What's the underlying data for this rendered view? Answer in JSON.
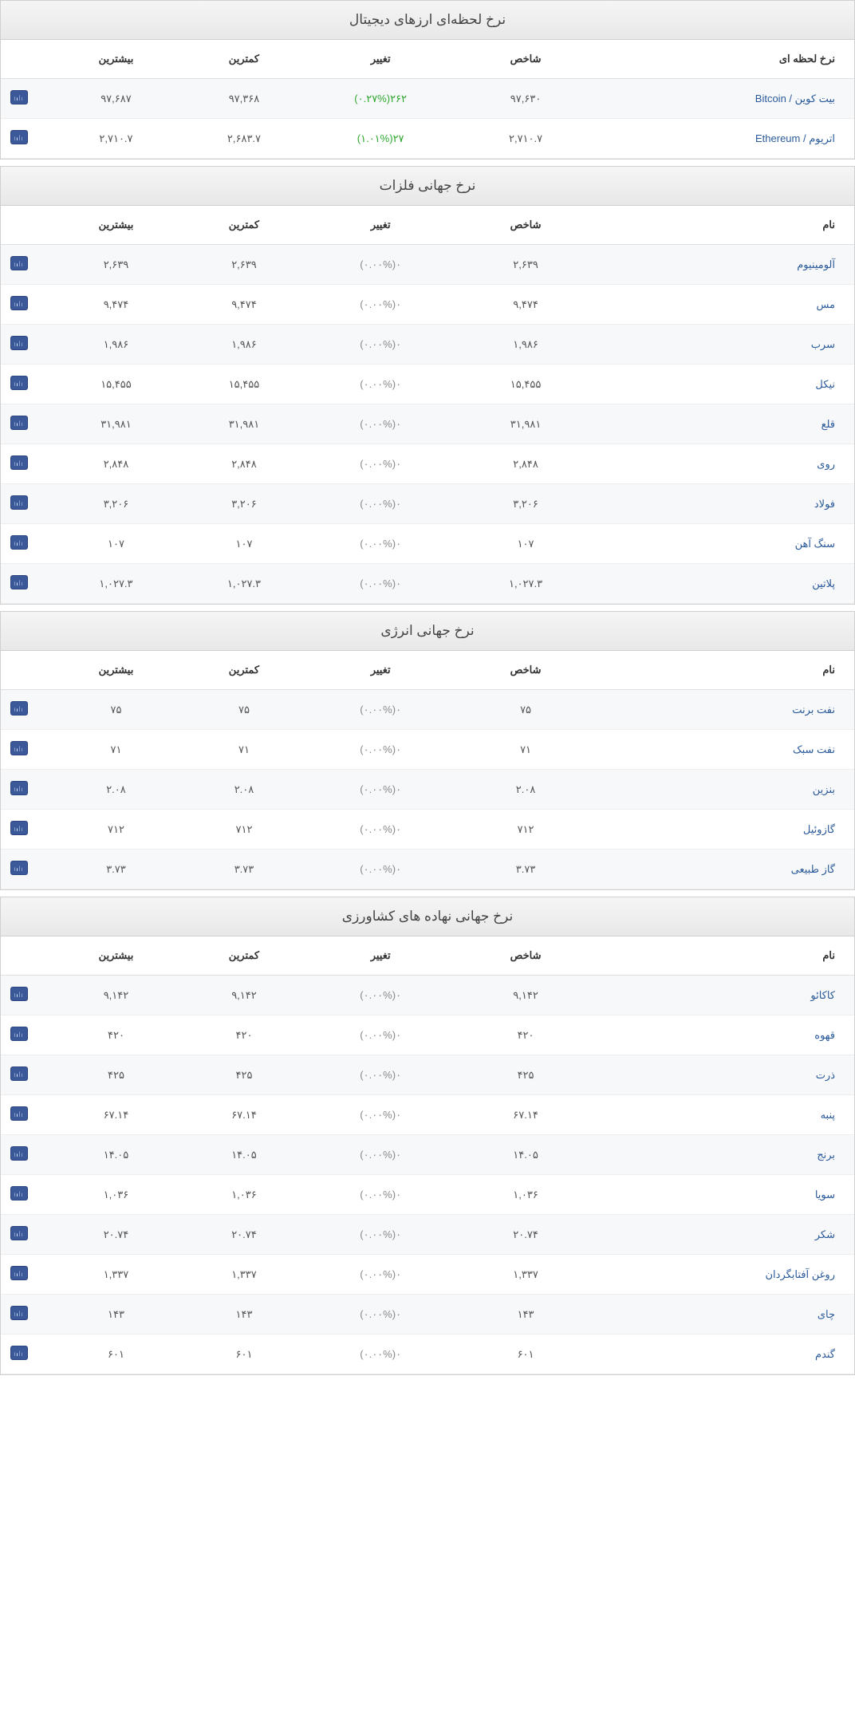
{
  "sections": [
    {
      "title": "نرخ لحظه‌ای ارزهای دیجیتال",
      "headers": {
        "name": "نرخ لحظه ای",
        "index": "شاخص",
        "change": "تغییر",
        "low": "کمترین",
        "high": "بیشترین"
      },
      "rows": [
        {
          "name": "بیت کوین / Bitcoin",
          "index": "۹۷,۶۳۰",
          "change_val": "۲۶۲",
          "change_pct": "(۰.۲۷%)",
          "positive": true,
          "low": "۹۷,۳۶۸",
          "high": "۹۷,۶۸۷"
        },
        {
          "name": "اتریوم / Ethereum",
          "index": "۲,۷۱۰.۷",
          "change_val": "۲۷",
          "change_pct": "(۱.۰۱%)",
          "positive": true,
          "low": "۲,۶۸۳.۷",
          "high": "۲,۷۱۰.۷"
        }
      ]
    },
    {
      "title": "نرخ جهانی فلزات",
      "headers": {
        "name": "نام",
        "index": "شاخص",
        "change": "تغییر",
        "low": "کمترین",
        "high": "بیشترین"
      },
      "rows": [
        {
          "name": "آلومینیوم",
          "index": "۲,۶۳۹",
          "change_val": "۰",
          "change_pct": "(۰.۰۰%)",
          "positive": false,
          "low": "۲,۶۳۹",
          "high": "۲,۶۳۹"
        },
        {
          "name": "مس",
          "index": "۹,۴۷۴",
          "change_val": "۰",
          "change_pct": "(۰.۰۰%)",
          "positive": false,
          "low": "۹,۴۷۴",
          "high": "۹,۴۷۴"
        },
        {
          "name": "سرب",
          "index": "۱,۹۸۶",
          "change_val": "۰",
          "change_pct": "(۰.۰۰%)",
          "positive": false,
          "low": "۱,۹۸۶",
          "high": "۱,۹۸۶"
        },
        {
          "name": "نیکل",
          "index": "۱۵,۴۵۵",
          "change_val": "۰",
          "change_pct": "(۰.۰۰%)",
          "positive": false,
          "low": "۱۵,۴۵۵",
          "high": "۱۵,۴۵۵"
        },
        {
          "name": "قلع",
          "index": "۳۱,۹۸۱",
          "change_val": "۰",
          "change_pct": "(۰.۰۰%)",
          "positive": false,
          "low": "۳۱,۹۸۱",
          "high": "۳۱,۹۸۱"
        },
        {
          "name": "روی",
          "index": "۲,۸۴۸",
          "change_val": "۰",
          "change_pct": "(۰.۰۰%)",
          "positive": false,
          "low": "۲,۸۴۸",
          "high": "۲,۸۴۸"
        },
        {
          "name": "فولاد",
          "index": "۳,۲۰۶",
          "change_val": "۰",
          "change_pct": "(۰.۰۰%)",
          "positive": false,
          "low": "۳,۲۰۶",
          "high": "۳,۲۰۶"
        },
        {
          "name": "سنگ آهن",
          "index": "۱۰۷",
          "change_val": "۰",
          "change_pct": "(۰.۰۰%)",
          "positive": false,
          "low": "۱۰۷",
          "high": "۱۰۷"
        },
        {
          "name": "پلاتین",
          "index": "۱,۰۲۷.۳",
          "change_val": "۰",
          "change_pct": "(۰.۰۰%)",
          "positive": false,
          "low": "۱,۰۲۷.۳",
          "high": "۱,۰۲۷.۳"
        }
      ]
    },
    {
      "title": "نرخ جهانی انرژی",
      "headers": {
        "name": "نام",
        "index": "شاخص",
        "change": "تغییر",
        "low": "کمترین",
        "high": "بیشترین"
      },
      "rows": [
        {
          "name": "نفت برنت",
          "index": "۷۵",
          "change_val": "۰",
          "change_pct": "(۰.۰۰%)",
          "positive": false,
          "low": "۷۵",
          "high": "۷۵"
        },
        {
          "name": "نفت سبک",
          "index": "۷۱",
          "change_val": "۰",
          "change_pct": "(۰.۰۰%)",
          "positive": false,
          "low": "۷۱",
          "high": "۷۱"
        },
        {
          "name": "بنزین",
          "index": "۲.۰۸",
          "change_val": "۰",
          "change_pct": "(۰.۰۰%)",
          "positive": false,
          "low": "۲.۰۸",
          "high": "۲.۰۸"
        },
        {
          "name": "گازوئیل",
          "index": "۷۱۲",
          "change_val": "۰",
          "change_pct": "(۰.۰۰%)",
          "positive": false,
          "low": "۷۱۲",
          "high": "۷۱۲"
        },
        {
          "name": "گاز طبیعی",
          "index": "۳.۷۳",
          "change_val": "۰",
          "change_pct": "(۰.۰۰%)",
          "positive": false,
          "low": "۳.۷۳",
          "high": "۳.۷۳"
        }
      ]
    },
    {
      "title": "نرخ جهانی نهاده های کشاورزی",
      "headers": {
        "name": "نام",
        "index": "شاخص",
        "change": "تغییر",
        "low": "کمترین",
        "high": "بیشترین"
      },
      "rows": [
        {
          "name": "کاکائو",
          "index": "۹,۱۴۲",
          "change_val": "۰",
          "change_pct": "(۰.۰۰%)",
          "positive": false,
          "low": "۹,۱۴۲",
          "high": "۹,۱۴۲"
        },
        {
          "name": "قهوه",
          "index": "۴۲۰",
          "change_val": "۰",
          "change_pct": "(۰.۰۰%)",
          "positive": false,
          "low": "۴۲۰",
          "high": "۴۲۰"
        },
        {
          "name": "ذرت",
          "index": "۴۲۵",
          "change_val": "۰",
          "change_pct": "(۰.۰۰%)",
          "positive": false,
          "low": "۴۲۵",
          "high": "۴۲۵"
        },
        {
          "name": "پنبه",
          "index": "۶۷.۱۴",
          "change_val": "۰",
          "change_pct": "(۰.۰۰%)",
          "positive": false,
          "low": "۶۷.۱۴",
          "high": "۶۷.۱۴"
        },
        {
          "name": "برنج",
          "index": "۱۴.۰۵",
          "change_val": "۰",
          "change_pct": "(۰.۰۰%)",
          "positive": false,
          "low": "۱۴.۰۵",
          "high": "۱۴.۰۵"
        },
        {
          "name": "سویا",
          "index": "۱,۰۳۶",
          "change_val": "۰",
          "change_pct": "(۰.۰۰%)",
          "positive": false,
          "low": "۱,۰۳۶",
          "high": "۱,۰۳۶"
        },
        {
          "name": "شکر",
          "index": "۲۰.۷۴",
          "change_val": "۰",
          "change_pct": "(۰.۰۰%)",
          "positive": false,
          "low": "۲۰.۷۴",
          "high": "۲۰.۷۴"
        },
        {
          "name": "روغن آفتابگردان",
          "index": "۱,۳۳۷",
          "change_val": "۰",
          "change_pct": "(۰.۰۰%)",
          "positive": false,
          "low": "۱,۳۳۷",
          "high": "۱,۳۳۷"
        },
        {
          "name": "چای",
          "index": "۱۴۳",
          "change_val": "۰",
          "change_pct": "(۰.۰۰%)",
          "positive": false,
          "low": "۱۴۳",
          "high": "۱۴۳"
        },
        {
          "name": "گندم",
          "index": "۶۰۱",
          "change_val": "۰",
          "change_pct": "(۰.۰۰%)",
          "positive": false,
          "low": "۶۰۱",
          "high": "۶۰۱"
        }
      ]
    }
  ],
  "colors": {
    "link": "#2a5a9a",
    "positive": "#2da82d",
    "neutral": "#888888",
    "chart_icon_bg": "#3b5998"
  }
}
